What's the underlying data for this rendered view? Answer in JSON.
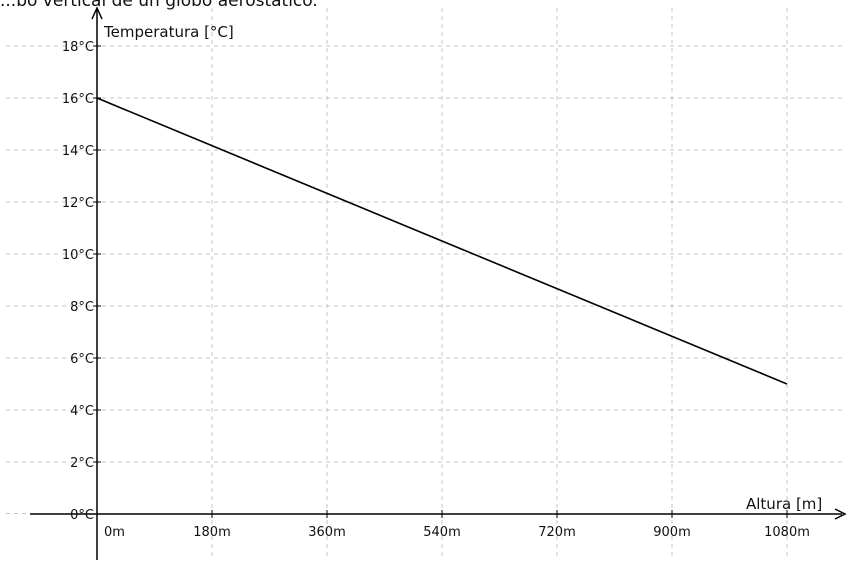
{
  "caption": "...bo vertical de un globo aerostático.",
  "chart_data": {
    "type": "line",
    "xlabel": "Altura [m]",
    "ylabel": "Temperatura [°C]",
    "xlim": [
      0,
      1080
    ],
    "ylim": [
      0,
      18
    ],
    "x_ticks": [
      "0m",
      "180m",
      "360m",
      "540m",
      "720m",
      "900m",
      "1080m"
    ],
    "y_ticks": [
      "0°C",
      "2°C",
      "4°C",
      "6°C",
      "8°C",
      "10°C",
      "12°C",
      "14°C",
      "16°C",
      "18°C"
    ],
    "grid": true,
    "series": [
      {
        "x": [
          0,
          1080
        ],
        "y": [
          16,
          5
        ]
      }
    ]
  }
}
